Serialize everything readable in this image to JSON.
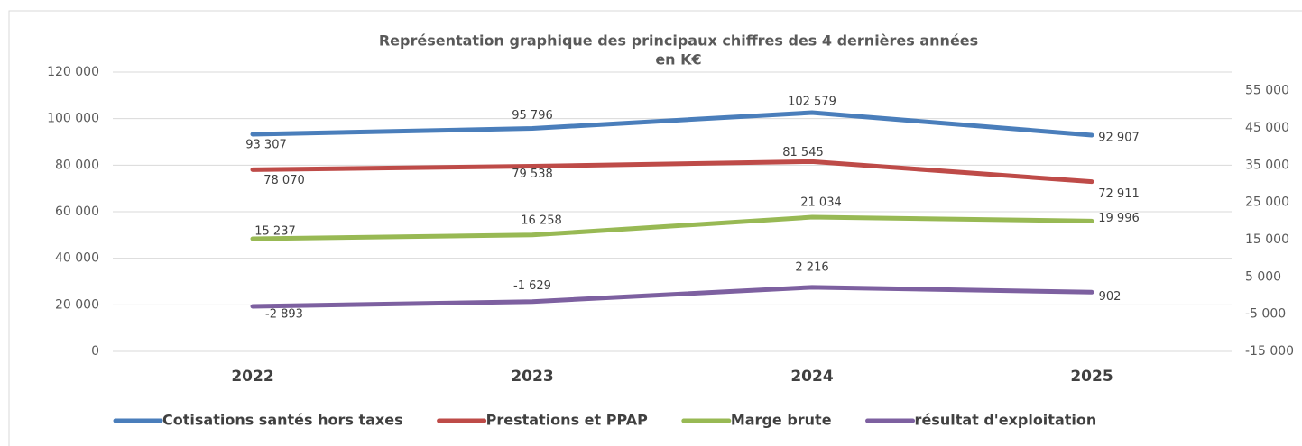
{
  "chart_data": {
    "type": "line",
    "title_lines": [
      "Représentation graphique des principaux chiffres des 4 dernières années",
      "en K€"
    ],
    "categories": [
      "2022",
      "2023",
      "2024",
      "2025"
    ],
    "series": [
      {
        "name": "Cotisations santés hors taxes",
        "color": "#4a7ebb",
        "axis": "y",
        "values": [
          93307,
          95796,
          102579,
          92907
        ],
        "value_labels": [
          "93 307",
          "95 796",
          "102 579",
          "92 907"
        ]
      },
      {
        "name": "Prestations et PPAP",
        "color": "#be4b48",
        "axis": "y",
        "values": [
          78070,
          79538,
          81545,
          72911
        ],
        "value_labels": [
          "78 070",
          "79 538",
          "81 545",
          "72 911"
        ]
      },
      {
        "name": "Marge brute",
        "color": "#98b954",
        "axis": "y2",
        "values": [
          15237,
          16258,
          21034,
          19996
        ],
        "value_labels": [
          "15 237",
          "16 258",
          "21 034",
          "19 996"
        ]
      },
      {
        "name": "résultat d'exploitation",
        "color": "#7d60a0",
        "axis": "y2",
        "values": [
          -2893,
          -1629,
          2216,
          902
        ],
        "value_labels": [
          "-2 893",
          "-1 629",
          "2 216",
          "902"
        ]
      }
    ],
    "ylim": [
      0,
      120000
    ],
    "yticks": [
      0,
      {
        "value": 20000,
        "label": "20 000"
      },
      {
        "value": 40000,
        "label": "40 000"
      },
      {
        "value": 60000,
        "label": "60 000"
      },
      {
        "value": 80000,
        "label": "80 000"
      },
      {
        "value": 100000,
        "label": "100 000"
      },
      {
        "value": 120000,
        "label": "120 000"
      }
    ],
    "y2lim": [
      -15000,
      60000
    ],
    "y2ticks": [
      {
        "value": -15000,
        "label": "-15 000"
      },
      {
        "value": -5000,
        "label": "-5 000"
      },
      {
        "value": 5000,
        "label": "5 000"
      },
      {
        "value": 15000,
        "label": "15 000"
      },
      {
        "value": 25000,
        "label": "25 000"
      },
      {
        "value": 35000,
        "label": "35 000"
      },
      {
        "value": 45000,
        "label": "45 000"
      },
      {
        "value": 55000,
        "label": "55 000"
      }
    ],
    "grid": true,
    "legend": "bottom"
  }
}
